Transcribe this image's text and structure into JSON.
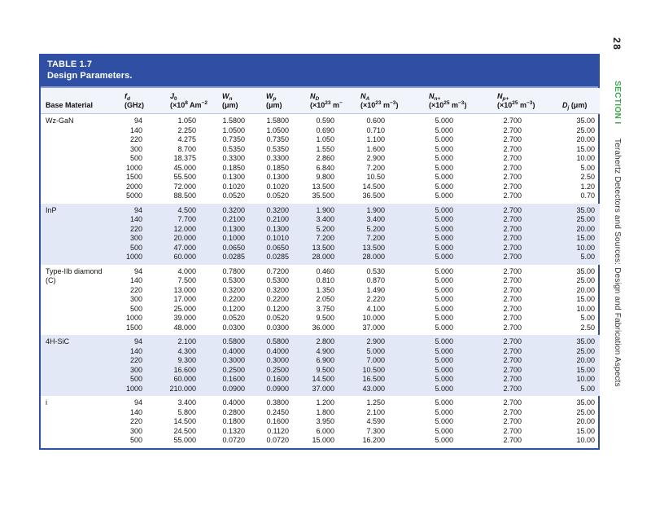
{
  "page": {
    "number": "28",
    "section_label": "SECTION I",
    "section_title": "Terahertz Detectors and Sources: Design and Fabrication Aspects"
  },
  "colors": {
    "band_blue": "#2e4fa3",
    "border_blue": "#2e4fa3",
    "band_edge": "#8fa2d4",
    "header_bg": "#f1f4fa",
    "header_rule": "#b9c5e3",
    "shaded_row": "#e2e8f5",
    "section_green": "#3fa54b",
    "text": "#111111"
  },
  "table": {
    "title_line1": "TABLE 1.7",
    "title_line2": "Design Parameters.",
    "columns": [
      {
        "key": "mat",
        "line1": [],
        "line2": [
          {
            "t": "Base Material"
          }
        ]
      },
      {
        "key": "fd",
        "line1": [
          {
            "t": "f",
            "i": 1
          },
          {
            "t": "d",
            "i": 1,
            "sub": 1
          }
        ],
        "line2": [
          {
            "t": "(GHz)"
          }
        ]
      },
      {
        "key": "j0",
        "line1": [
          {
            "t": "J",
            "i": 1
          },
          {
            "t": "0",
            "sub": 1
          }
        ],
        "line2": [
          {
            "t": "(×10"
          },
          {
            "t": "8",
            "sup": 1
          },
          {
            "t": " Am"
          },
          {
            "t": "−2",
            "sup": 1
          },
          {
            "t": ")"
          }
        ]
      },
      {
        "key": "wn",
        "line1": [
          {
            "t": "W",
            "i": 1
          },
          {
            "t": "n",
            "i": 1,
            "sub": 1
          }
        ],
        "line2": [
          {
            "t": "(μm)"
          }
        ]
      },
      {
        "key": "wp",
        "line1": [
          {
            "t": "W",
            "i": 1
          },
          {
            "t": "p",
            "i": 1,
            "sub": 1
          }
        ],
        "line2": [
          {
            "t": "(μm)"
          }
        ]
      },
      {
        "key": "nd",
        "line1": [
          {
            "t": "N",
            "i": 1
          },
          {
            "t": "D",
            "i": 1,
            "sub": 1
          }
        ],
        "line2": [
          {
            "t": "(×10"
          },
          {
            "t": "23",
            "sup": 1
          },
          {
            "t": " m"
          },
          {
            "t": "−3",
            "sup": 1
          },
          {
            "t": ")"
          }
        ]
      },
      {
        "key": "na",
        "line1": [
          {
            "t": "N",
            "i": 1
          },
          {
            "t": "A",
            "i": 1,
            "sub": 1
          }
        ],
        "line2": [
          {
            "t": "(×10"
          },
          {
            "t": "23",
            "sup": 1
          },
          {
            "t": " m"
          },
          {
            "t": "−3",
            "sup": 1
          },
          {
            "t": ")"
          }
        ]
      },
      {
        "key": "nn",
        "line1": [
          {
            "t": "N",
            "i": 1
          },
          {
            "t": "n+",
            "i": 1,
            "sub": 1
          }
        ],
        "line2": [
          {
            "t": "(×10"
          },
          {
            "t": "25",
            "sup": 1
          },
          {
            "t": " m"
          },
          {
            "t": "−3",
            "sup": 1
          },
          {
            "t": ")"
          }
        ]
      },
      {
        "key": "np",
        "line1": [
          {
            "t": "N",
            "i": 1
          },
          {
            "t": "p+",
            "i": 1,
            "sub": 1
          }
        ],
        "line2": [
          {
            "t": "(×10"
          },
          {
            "t": "25",
            "sup": 1
          },
          {
            "t": " m"
          },
          {
            "t": "−3",
            "sup": 1
          },
          {
            "t": ")"
          }
        ]
      },
      {
        "key": "dj",
        "line1": [],
        "line2": [
          {
            "t": "D",
            "i": 1
          },
          {
            "t": "j",
            "i": 1,
            "sub": 1
          },
          {
            "t": " (μm)"
          }
        ]
      }
    ],
    "groups": [
      {
        "material": "Wz-GaN",
        "material2": "",
        "shaded": false,
        "rows": [
          [
            "94",
            "1.050",
            "1.5800",
            "1.5800",
            "0.590",
            "0.600",
            "5.000",
            "2.700",
            "35.00"
          ],
          [
            "140",
            "2.250",
            "1.0500",
            "1.0500",
            "0.690",
            "0.710",
            "5.000",
            "2.700",
            "25.00"
          ],
          [
            "220",
            "4.275",
            "0.7350",
            "0.7350",
            "1.050",
            "1.100",
            "5.000",
            "2.700",
            "20.00"
          ],
          [
            "300",
            "8.700",
            "0.5350",
            "0.5350",
            "1.550",
            "1.600",
            "5.000",
            "2.700",
            "15.00"
          ],
          [
            "500",
            "18.375",
            "0.3300",
            "0.3300",
            "2.860",
            "2.900",
            "5.000",
            "2.700",
            "10.00"
          ],
          [
            "1000",
            "45.000",
            "0.1850",
            "0.1850",
            "6.840",
            "7.200",
            "5.000",
            "2.700",
            "5.00"
          ],
          [
            "1500",
            "55.500",
            "0.1300",
            "0.1300",
            "9.800",
            "10.50",
            "5.000",
            "2.700",
            "2.50"
          ],
          [
            "2000",
            "72.000",
            "0.1020",
            "0.1020",
            "13.500",
            "14.500",
            "5.000",
            "2.700",
            "1.20"
          ],
          [
            "5000",
            "88.500",
            "0.0520",
            "0.0520",
            "35.500",
            "36.500",
            "5.000",
            "2.700",
            "0.70"
          ]
        ]
      },
      {
        "material": "InP",
        "material2": "",
        "shaded": true,
        "rows": [
          [
            "94",
            "4.500",
            "0.3200",
            "0.3200",
            "1.900",
            "1.900",
            "5.000",
            "2.700",
            "35.00"
          ],
          [
            "140",
            "7.700",
            "0.2100",
            "0.2100",
            "3.400",
            "3.400",
            "5.000",
            "2.700",
            "25.00"
          ],
          [
            "220",
            "12.000",
            "0.1300",
            "0.1300",
            "5.200",
            "5.200",
            "5.000",
            "2.700",
            "20.00"
          ],
          [
            "300",
            "20.000",
            "0.1000",
            "0.1010",
            "7.200",
            "7.200",
            "5.000",
            "2.700",
            "15.00"
          ],
          [
            "500",
            "47.000",
            "0.0650",
            "0.0650",
            "13.500",
            "13.500",
            "5.000",
            "2.700",
            "10.00"
          ],
          [
            "1000",
            "60.000",
            "0.0285",
            "0.0285",
            "28.000",
            "28.000",
            "5.000",
            "2.700",
            "5.00"
          ]
        ]
      },
      {
        "material": "Type-IIb diamond",
        "material2": "(C)",
        "shaded": false,
        "rows": [
          [
            "94",
            "4.000",
            "0.7800",
            "0.7200",
            "0.460",
            "0.530",
            "5.000",
            "2.700",
            "35.00"
          ],
          [
            "140",
            "7.500",
            "0.5300",
            "0.5300",
            "0.810",
            "0.870",
            "5.000",
            "2.700",
            "25.00"
          ],
          [
            "220",
            "13.000",
            "0.3200",
            "0.3200",
            "1.350",
            "1.490",
            "5.000",
            "2.700",
            "20.00"
          ],
          [
            "300",
            "17.000",
            "0.2200",
            "0.2200",
            "2.050",
            "2.220",
            "5.000",
            "2.700",
            "15.00"
          ],
          [
            "500",
            "25.000",
            "0.1200",
            "0.1200",
            "3.750",
            "4.100",
            "5.000",
            "2.700",
            "10.00"
          ],
          [
            "1000",
            "39.000",
            "0.0520",
            "0.0520",
            "9.500",
            "10.000",
            "5.000",
            "2.700",
            "5.00"
          ],
          [
            "1500",
            "48.000",
            "0.0300",
            "0.0300",
            "36.000",
            "37.000",
            "5.000",
            "2.700",
            "2.50"
          ]
        ]
      },
      {
        "material": "4H-SiC",
        "material2": "",
        "shaded": true,
        "rows": [
          [
            "94",
            "2.100",
            "0.5800",
            "0.5800",
            "2.800",
            "2.900",
            "5.000",
            "2.700",
            "35.00"
          ],
          [
            "140",
            "4.300",
            "0.4000",
            "0.4000",
            "4.900",
            "5.000",
            "5.000",
            "2.700",
            "25.00"
          ],
          [
            "220",
            "9.300",
            "0.3000",
            "0.3000",
            "6.900",
            "7.000",
            "5.000",
            "2.700",
            "20.00"
          ],
          [
            "300",
            "16.600",
            "0.2500",
            "0.2500",
            "9.500",
            "10.500",
            "5.000",
            "2.700",
            "15.00"
          ],
          [
            "500",
            "60.000",
            "0.1600",
            "0.1600",
            "14.500",
            "16.500",
            "5.000",
            "2.700",
            "10.00"
          ],
          [
            "1000",
            "210.000",
            "0.0900",
            "0.0900",
            "37.000",
            "43.000",
            "5.000",
            "2.700",
            "5.00"
          ]
        ]
      },
      {
        "material": "i",
        "material2": "",
        "shaded": false,
        "rows": [
          [
            "94",
            "3.400",
            "0.4000",
            "0.3800",
            "1.200",
            "1.250",
            "5.000",
            "2.700",
            "35.00"
          ],
          [
            "140",
            "5.800",
            "0.2800",
            "0.2450",
            "1.800",
            "2.100",
            "5.000",
            "2.700",
            "25.00"
          ],
          [
            "220",
            "14.500",
            "0.1800",
            "0.1600",
            "3.950",
            "4.590",
            "5.000",
            "2.700",
            "20.00"
          ],
          [
            "300",
            "24.500",
            "0.1320",
            "0.1120",
            "6.000",
            "7.300",
            "5.000",
            "2.700",
            "15.00"
          ],
          [
            "500",
            "55.000",
            "0.0720",
            "0.0720",
            "15.000",
            "16.200",
            "5.000",
            "2.700",
            "10.00"
          ]
        ]
      }
    ]
  }
}
